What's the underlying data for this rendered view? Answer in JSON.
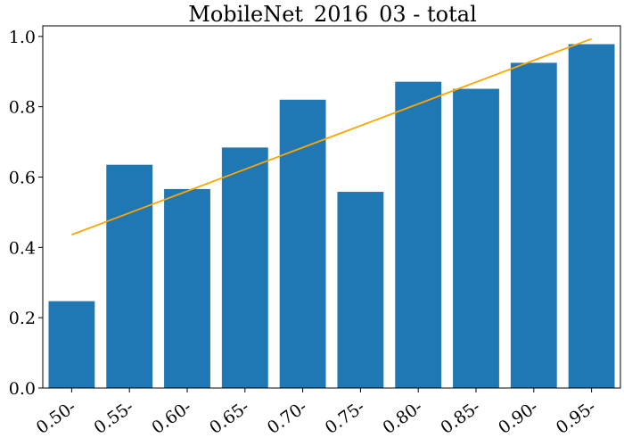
{
  "chart_data": {
    "type": "bar",
    "title": "MobileNet_2016_03 - total",
    "xlabel": "",
    "ylabel": "",
    "categories": [
      "0.50-",
      "0.55-",
      "0.60-",
      "0.65-",
      "0.70-",
      "0.75-",
      "0.80-",
      "0.85-",
      "0.90-",
      "0.95-"
    ],
    "series": [
      {
        "type": "bar",
        "values": [
          0.247,
          0.635,
          0.566,
          0.684,
          0.82,
          0.558,
          0.871,
          0.851,
          0.925,
          0.978
        ],
        "color": "#1f77b4"
      },
      {
        "type": "line",
        "values": [
          0.436,
          0.498,
          0.56,
          0.622,
          0.684,
          0.746,
          0.808,
          0.87,
          0.932,
          0.993
        ],
        "color": "#ffa500"
      }
    ],
    "ylim": [
      0,
      1.03
    ],
    "yticks": [
      "0.0",
      "0.2",
      "0.4",
      "0.6",
      "0.8",
      "1.0"
    ],
    "grid": false,
    "legend": "none"
  }
}
